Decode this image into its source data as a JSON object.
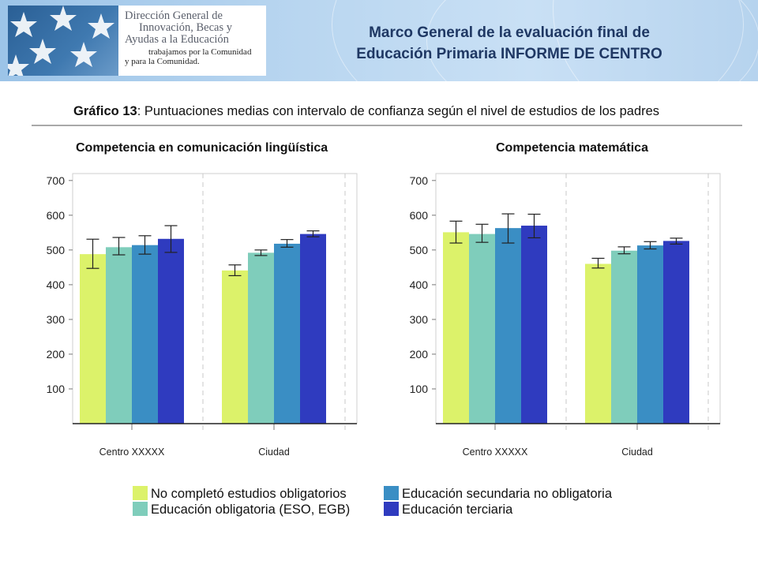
{
  "header": {
    "logo": {
      "line1": "Dirección General de",
      "line2": "Innovación, Becas y",
      "line3": "Ayudas a la Educación",
      "line4": "trabajamos por la Comunidad",
      "line5": "y para la Comunidad."
    },
    "title_line1": "Marco General de la evaluación final de",
    "title_line2": "Educación Primaria INFORME DE CENTRO"
  },
  "figure": {
    "label": "Gráfico 13",
    "caption": ": Puntuaciones medias con intervalo de confianza según el nivel de estudios de los padres"
  },
  "legend": [
    {
      "label": "No completó estudios obligatorios",
      "color": "#dcf26a"
    },
    {
      "label": "Educación obligatoria (ESO, EGB)",
      "color": "#7fcdbb"
    },
    {
      "label": "Educación secundaria no obligatoria",
      "color": "#3a8ec4"
    },
    {
      "label": "Educación terciaria",
      "color": "#2f3bbf"
    }
  ],
  "chart_data": [
    {
      "type": "bar",
      "title": "Competencia en comunicación lingüística",
      "categories": [
        "Centro XXXXX",
        "Ciudad"
      ],
      "yticks": [
        100,
        200,
        300,
        400,
        500,
        600,
        700
      ],
      "ylim": [
        0,
        720
      ],
      "series": [
        {
          "name": "No completó estudios obligatorios",
          "values": [
            488,
            441
          ],
          "ci_low": [
            447,
            426
          ],
          "ci_high": [
            531,
            457
          ]
        },
        {
          "name": "Educación obligatoria (ESO, EGB)",
          "values": [
            508,
            492
          ],
          "ci_low": [
            486,
            484
          ],
          "ci_high": [
            536,
            500
          ]
        },
        {
          "name": "Educación secundaria no obligatoria",
          "values": [
            514,
            518
          ],
          "ci_low": [
            488,
            508
          ],
          "ci_high": [
            541,
            530
          ]
        },
        {
          "name": "Educación terciaria",
          "values": [
            532,
            546
          ],
          "ci_low": [
            493,
            538
          ],
          "ci_high": [
            570,
            555
          ]
        }
      ]
    },
    {
      "type": "bar",
      "title": "Competencia matemática",
      "categories": [
        "Centro XXXXX",
        "Ciudad"
      ],
      "yticks": [
        100,
        200,
        300,
        400,
        500,
        600,
        700
      ],
      "ylim": [
        0,
        720
      ],
      "series": [
        {
          "name": "No completó estudios obligatorios",
          "values": [
            551,
            460
          ],
          "ci_low": [
            520,
            448
          ],
          "ci_high": [
            583,
            476
          ]
        },
        {
          "name": "Educación obligatoria (ESO, EGB)",
          "values": [
            546,
            498
          ],
          "ci_low": [
            522,
            489
          ],
          "ci_high": [
            574,
            509
          ]
        },
        {
          "name": "Educación secundaria no obligatoria",
          "values": [
            563,
            513
          ],
          "ci_low": [
            520,
            503
          ],
          "ci_high": [
            604,
            524
          ]
        },
        {
          "name": "Educación terciaria",
          "values": [
            570,
            526
          ],
          "ci_low": [
            535,
            517
          ],
          "ci_high": [
            603,
            534
          ]
        }
      ]
    }
  ]
}
